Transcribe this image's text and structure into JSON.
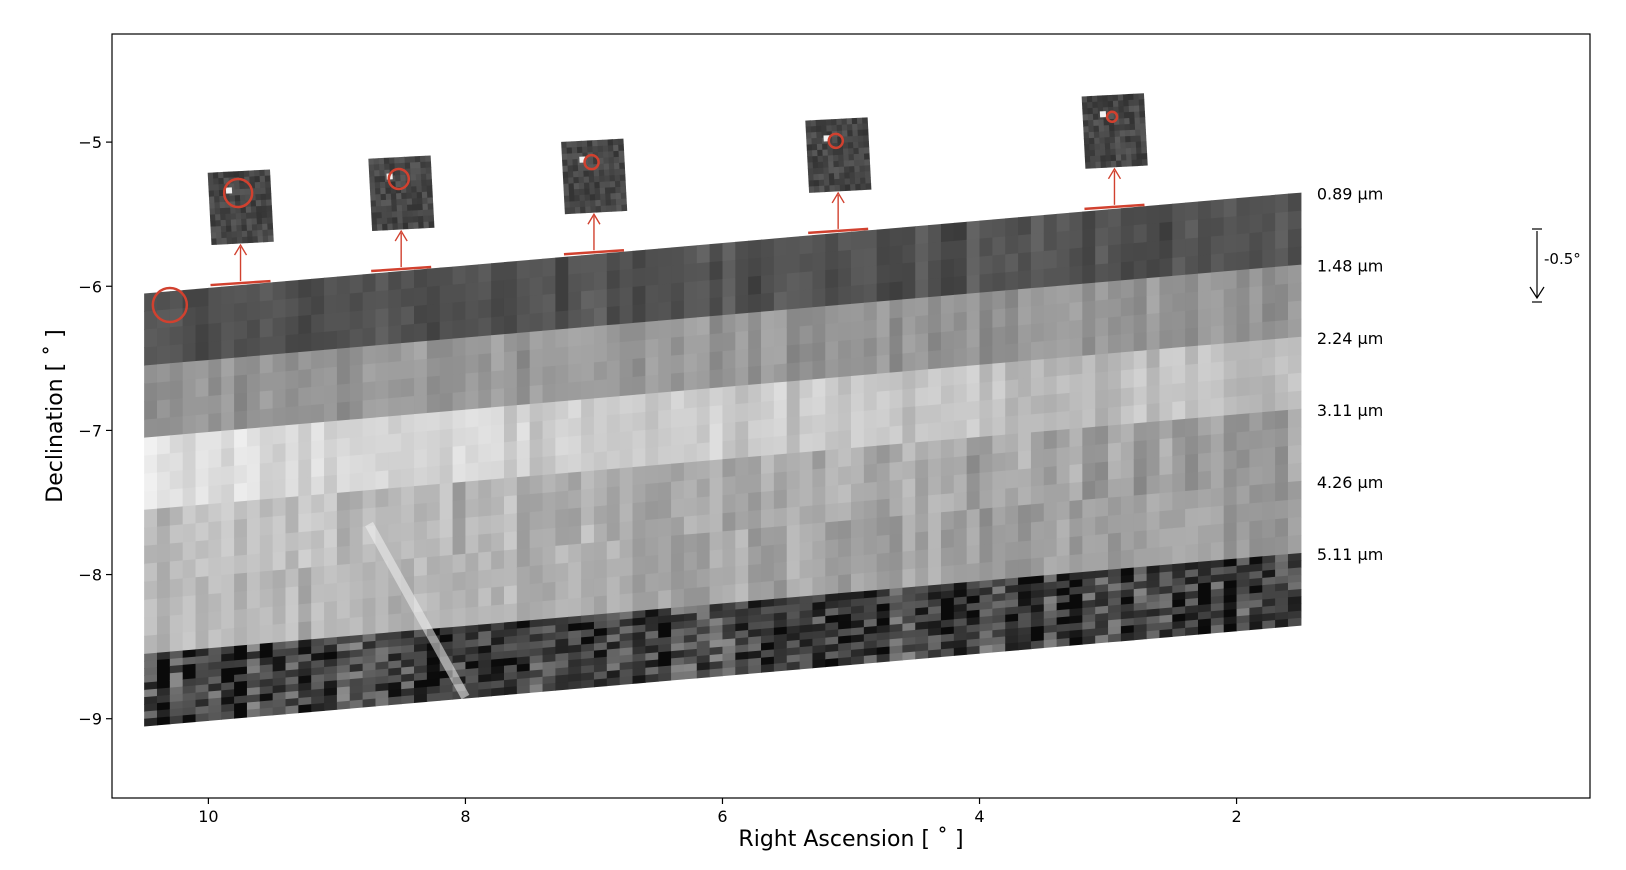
{
  "figure": {
    "x_axis": {
      "label": "Right Ascension [$^\\circ$]",
      "label_text": "Right Ascension [ ˚ ]",
      "direction": "decreasing-left-to-right",
      "range": [
        10.75,
        -0.75
      ],
      "ticks": [
        10,
        8,
        6,
        4,
        2
      ],
      "tick_labels": [
        "10",
        "8",
        "6",
        "4",
        "2"
      ]
    },
    "y_axis": {
      "label_text": "Declination [ ˚ ]",
      "range": [
        -9.55,
        -4.25
      ],
      "ticks": [
        -5,
        -6,
        -7,
        -8,
        -9
      ],
      "tick_labels": [
        "−5",
        "−6",
        "−7",
        "−8",
        "−9"
      ]
    },
    "bands": [
      {
        "label": "0.89 μm",
        "ra_left": 10.5,
        "dec_left_top": -6.05,
        "ra_right": 1.5,
        "dec_right_top": -5.35,
        "height": 0.5,
        "tone": "dark"
      },
      {
        "label": "1.48 μm",
        "ra_left": 10.5,
        "dec_left_top": -6.55,
        "ra_right": 1.5,
        "dec_right_top": -5.85,
        "height": 0.5,
        "tone": "medium"
      },
      {
        "label": "2.24 μm",
        "ra_left": 10.5,
        "dec_left_top": -7.05,
        "ra_right": 1.5,
        "dec_right_top": -6.35,
        "height": 0.5,
        "tone": "light"
      },
      {
        "label": "3.11 μm",
        "ra_left": 10.5,
        "dec_left_top": -7.55,
        "ra_right": 1.5,
        "dec_right_top": -6.85,
        "height": 0.5,
        "tone": "light-medium"
      },
      {
        "label": "4.26 μm",
        "ra_left": 10.5,
        "dec_left_top": -8.05,
        "ra_right": 1.5,
        "dec_right_top": -7.35,
        "height": 0.5,
        "tone": "medium-light"
      },
      {
        "label": "5.11 μm",
        "ra_left": 10.5,
        "dec_left_top": -8.55,
        "ra_right": 1.5,
        "dec_right_top": -7.85,
        "height": 0.5,
        "tone": "noisy-dark"
      }
    ],
    "offset_annotation": {
      "label": "-0.5°"
    },
    "highlight_color": "#d1412f",
    "insets": [
      {
        "ra": 9.75,
        "circle_size": "large"
      },
      {
        "ra": 8.5,
        "circle_size": "medium"
      },
      {
        "ra": 7.0,
        "circle_size": "small"
      },
      {
        "ra": 5.1,
        "circle_size": "small"
      },
      {
        "ra": 2.95,
        "circle_size": "tiny"
      }
    ]
  }
}
